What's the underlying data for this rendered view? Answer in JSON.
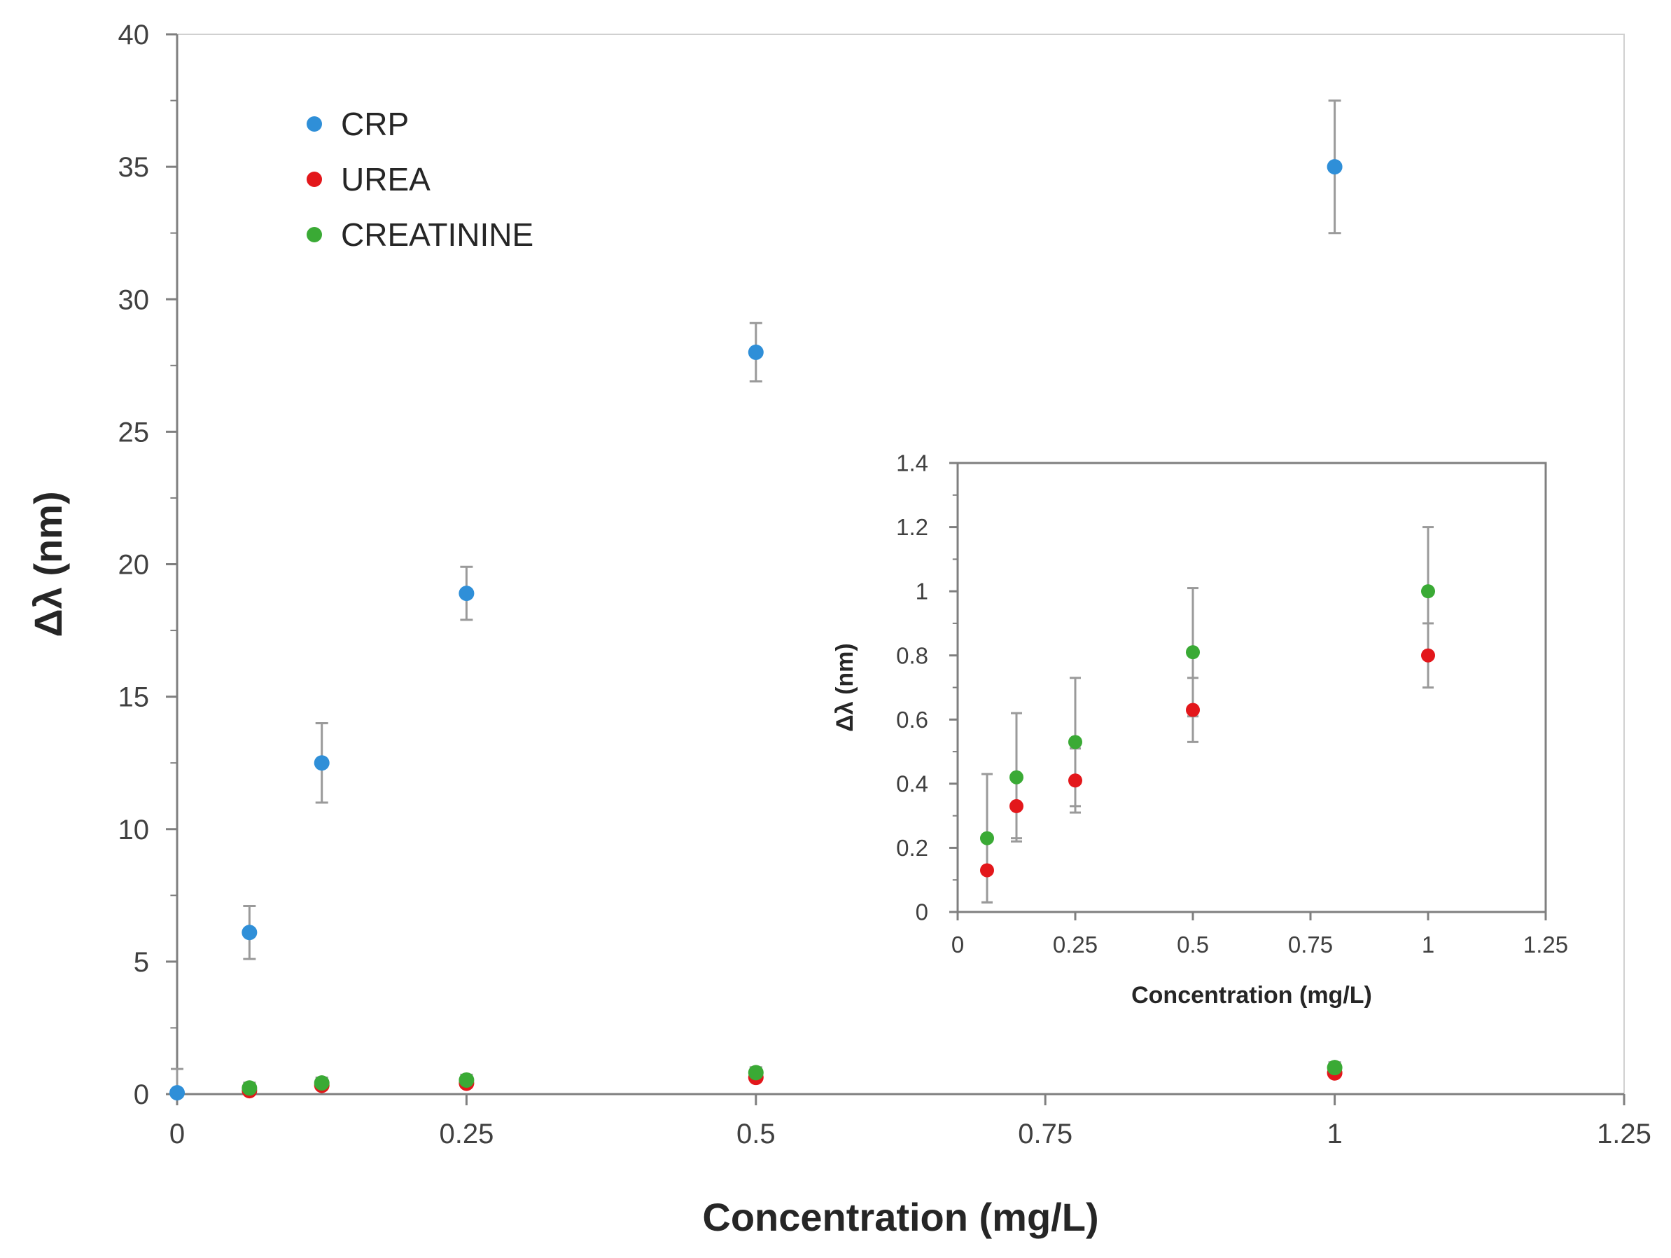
{
  "chart_data": [
    {
      "type": "scatter",
      "title": "",
      "xlabel": "Concentration (mg/L)",
      "ylabel": "Δλ (nm)",
      "xlim": [
        0,
        1.25
      ],
      "ylim": [
        0,
        40
      ],
      "xticks": [
        0,
        0.25,
        0.5,
        0.75,
        1,
        1.25
      ],
      "xtick_labels": [
        "0",
        "0.25",
        "0.5",
        "0.75",
        "1",
        "1.25"
      ],
      "yticks": [
        0,
        5,
        10,
        15,
        20,
        25,
        30,
        35,
        40
      ],
      "ytick_labels": [
        "0",
        "5",
        "10",
        "15",
        "20",
        "25",
        "30",
        "35",
        "40"
      ],
      "legend": "top-left",
      "grid": false,
      "series": [
        {
          "name": "CRP",
          "color": "#2f8fd8",
          "x": [
            0,
            0.0625,
            0.125,
            0.25,
            0.5,
            1
          ],
          "y": [
            0.05,
            6.1,
            12.5,
            18.9,
            28.0,
            35.0
          ],
          "err": [
            0.9,
            1.0,
            1.5,
            1.0,
            1.1,
            2.5
          ]
        },
        {
          "name": "UREA",
          "color": "#e3171b",
          "x": [
            0.0625,
            0.125,
            0.25,
            0.5,
            1
          ],
          "y": [
            0.13,
            0.33,
            0.41,
            0.63,
            0.8
          ],
          "err": [
            0.1,
            0.1,
            0.1,
            0.1,
            0.1
          ]
        },
        {
          "name": "CREATININE",
          "color": "#3aaa35",
          "x": [
            0.0625,
            0.125,
            0.25,
            0.5,
            1
          ],
          "y": [
            0.23,
            0.42,
            0.53,
            0.81,
            1.0
          ],
          "err": [
            0.2,
            0.2,
            0.2,
            0.2,
            0.2
          ]
        }
      ]
    },
    {
      "type": "scatter",
      "title": "",
      "xlabel": "Concentration (mg/L)",
      "ylabel": "Δλ (nm)",
      "xlim": [
        0,
        1.25
      ],
      "ylim": [
        0,
        1.4
      ],
      "xticks": [
        0,
        0.25,
        0.5,
        0.75,
        1,
        1.25
      ],
      "xtick_labels": [
        "0",
        "0.25",
        "0.5",
        "0.75",
        "1",
        "1.25"
      ],
      "yticks": [
        0,
        0.2,
        0.4,
        0.6,
        0.8,
        1,
        1.2,
        1.4
      ],
      "ytick_labels": [
        "0",
        "0.2",
        "0.4",
        "0.6",
        "0.8",
        "1",
        "1.2",
        "1.4"
      ],
      "grid": false,
      "series": [
        {
          "name": "UREA",
          "color": "#e3171b",
          "x": [
            0.0625,
            0.125,
            0.25,
            0.5,
            1
          ],
          "y": [
            0.13,
            0.33,
            0.41,
            0.63,
            0.8
          ],
          "err": [
            0.1,
            0.1,
            0.1,
            0.1,
            0.1
          ]
        },
        {
          "name": "CREATININE",
          "color": "#3aaa35",
          "x": [
            0.0625,
            0.125,
            0.25,
            0.5,
            1
          ],
          "y": [
            0.23,
            0.42,
            0.53,
            0.81,
            1.0
          ],
          "err": [
            0.2,
            0.2,
            0.2,
            0.2,
            0.2
          ]
        }
      ]
    }
  ]
}
